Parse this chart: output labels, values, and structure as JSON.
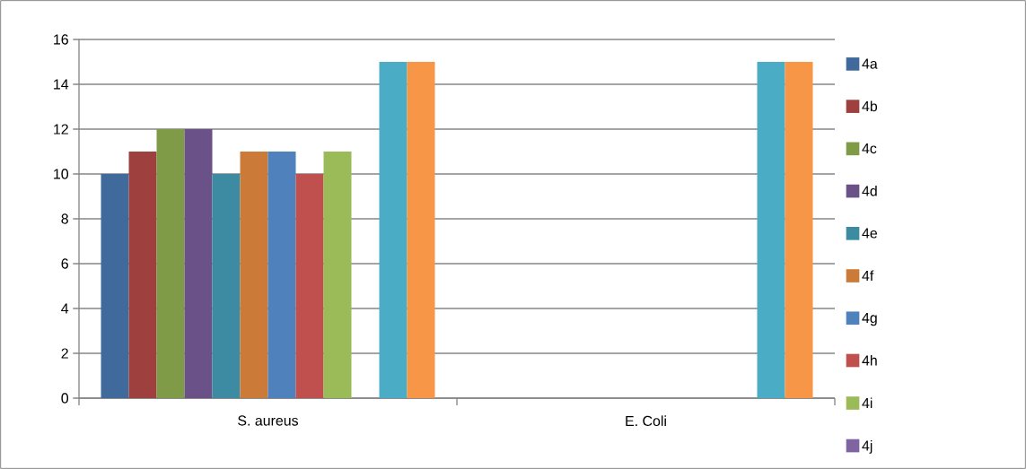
{
  "chart_data": {
    "type": "bar",
    "categories": [
      "S. aureus",
      "E. Coli"
    ],
    "series": [
      {
        "name": "4a",
        "color": "#416a9c",
        "values": [
          10,
          null
        ]
      },
      {
        "name": "4b",
        "color": "#9e403d",
        "values": [
          11,
          null
        ]
      },
      {
        "name": "4c",
        "color": "#809b48",
        "values": [
          12,
          null
        ]
      },
      {
        "name": "4d",
        "color": "#6a5187",
        "values": [
          12,
          null
        ]
      },
      {
        "name": "4e",
        "color": "#3d8ba3",
        "values": [
          10,
          null
        ]
      },
      {
        "name": "4f",
        "color": "#cb7b37",
        "values": [
          11,
          null
        ]
      },
      {
        "name": "4g",
        "color": "#4f81bc",
        "values": [
          11,
          null
        ]
      },
      {
        "name": "4h",
        "color": "#c0504d",
        "values": [
          10,
          null
        ]
      },
      {
        "name": "4i",
        "color": "#9bbb58",
        "values": [
          11,
          null
        ]
      },
      {
        "name": "4j",
        "color": "#8064a2",
        "values": [
          null,
          null
        ]
      },
      {
        "color": "#4bacc6",
        "values": [
          15,
          15
        ]
      },
      {
        "color": "#f79646",
        "values": [
          15,
          15
        ]
      }
    ],
    "ylim": [
      0,
      16
    ],
    "yticks": [
      0,
      2,
      4,
      6,
      8,
      10,
      12,
      14,
      16
    ],
    "grid": "y",
    "legend": "right"
  }
}
